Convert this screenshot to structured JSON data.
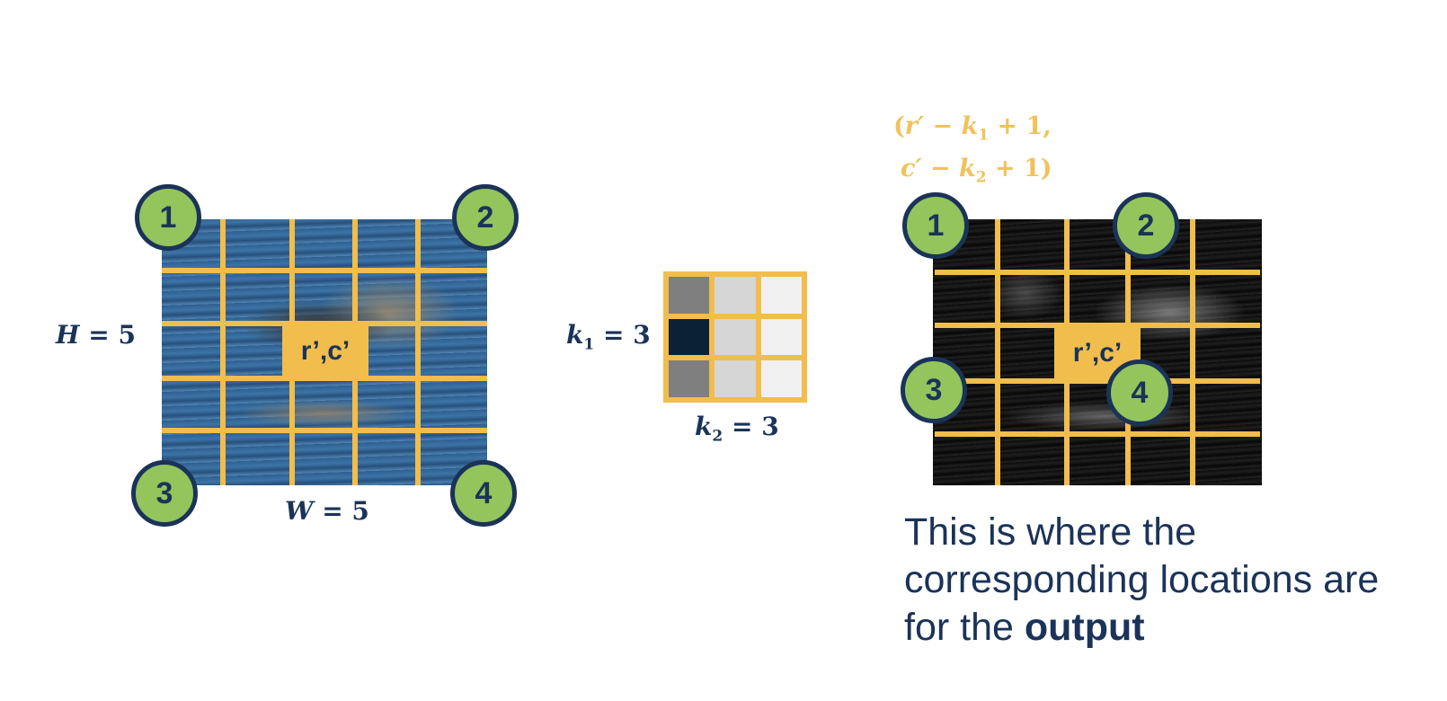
{
  "left_grid": {
    "center_label": "r’,c’",
    "height_label": {
      "var": "H",
      "op": "=",
      "num": "5"
    },
    "width_label": {
      "var": "W",
      "op": "=",
      "num": "5"
    },
    "corners": [
      "1",
      "2",
      "3",
      "4"
    ]
  },
  "kernel": {
    "k1_label": {
      "var": "k",
      "sub": "1",
      "op": "=",
      "num": "3"
    },
    "k2_label": {
      "var": "k",
      "sub": "2",
      "op": "=",
      "num": "3"
    },
    "cell_colors": [
      "#7f7f7f",
      "#d6d6d6",
      "#f0f0f0",
      "#0b2236",
      "#d6d6d6",
      "#f0f0f0",
      "#7f7f7f",
      "#d6d6d6",
      "#f0f0f0"
    ]
  },
  "right_grid": {
    "center_label": "r’,c’",
    "corners": [
      "1",
      "2",
      "3",
      "4"
    ],
    "formula": {
      "line1": {
        "open": "(",
        "var": "r′",
        "minus": "−",
        "k": "k",
        "sub": "1",
        "plus": "+",
        "one": "1",
        "comma": ","
      },
      "line2": {
        "var": "c′",
        "minus": "−",
        "k": "k",
        "sub": "2",
        "plus": "+",
        "one": "1",
        "close": ")"
      }
    }
  },
  "caption": {
    "text": "This is where the corresponding locations are for the ",
    "bold": "output"
  },
  "colors": {
    "navy": "#1b3358",
    "gold": "#f1bd4c",
    "badge_green": "#94c45c",
    "formula_gold": "#f1c25a"
  }
}
